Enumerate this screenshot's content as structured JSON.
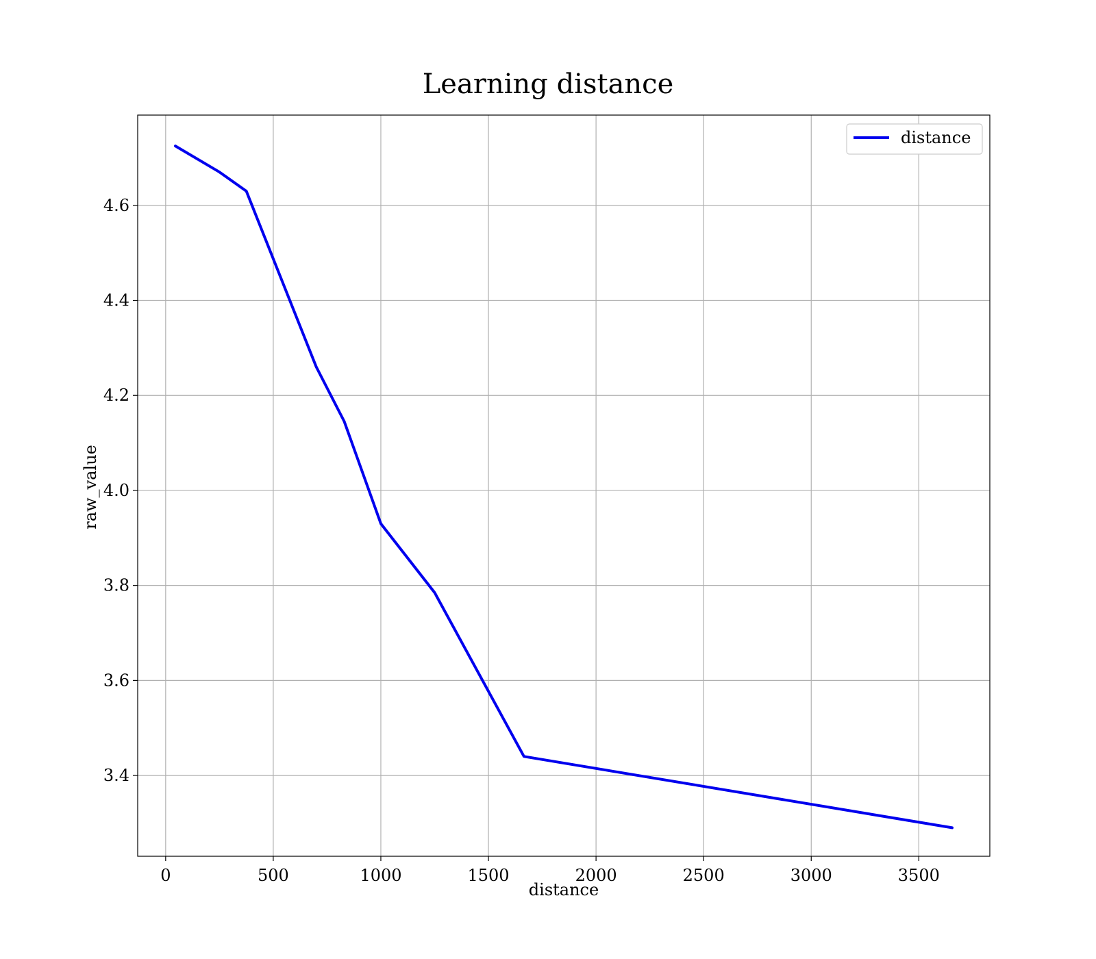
{
  "chart_data": {
    "type": "line",
    "title": "Learning distance",
    "xlabel": "distance",
    "ylabel": "raw_value",
    "xlim": [
      -130,
      3830
    ],
    "ylim": [
      3.23,
      4.79
    ],
    "xticks": [
      0,
      500,
      1000,
      1500,
      2000,
      2500,
      3000,
      3500
    ],
    "yticks": [
      3.4,
      3.6,
      3.8,
      4.0,
      4.2,
      4.4,
      4.6
    ],
    "grid": true,
    "legend_position": "top-right",
    "series": [
      {
        "name": "distance",
        "color": "#0000ee",
        "x": [
          45,
          250,
          375,
          700,
          830,
          1000,
          1250,
          1665,
          3655
        ],
        "y": [
          4.725,
          4.67,
          4.63,
          4.26,
          4.145,
          3.93,
          3.785,
          3.44,
          3.29
        ]
      }
    ]
  }
}
